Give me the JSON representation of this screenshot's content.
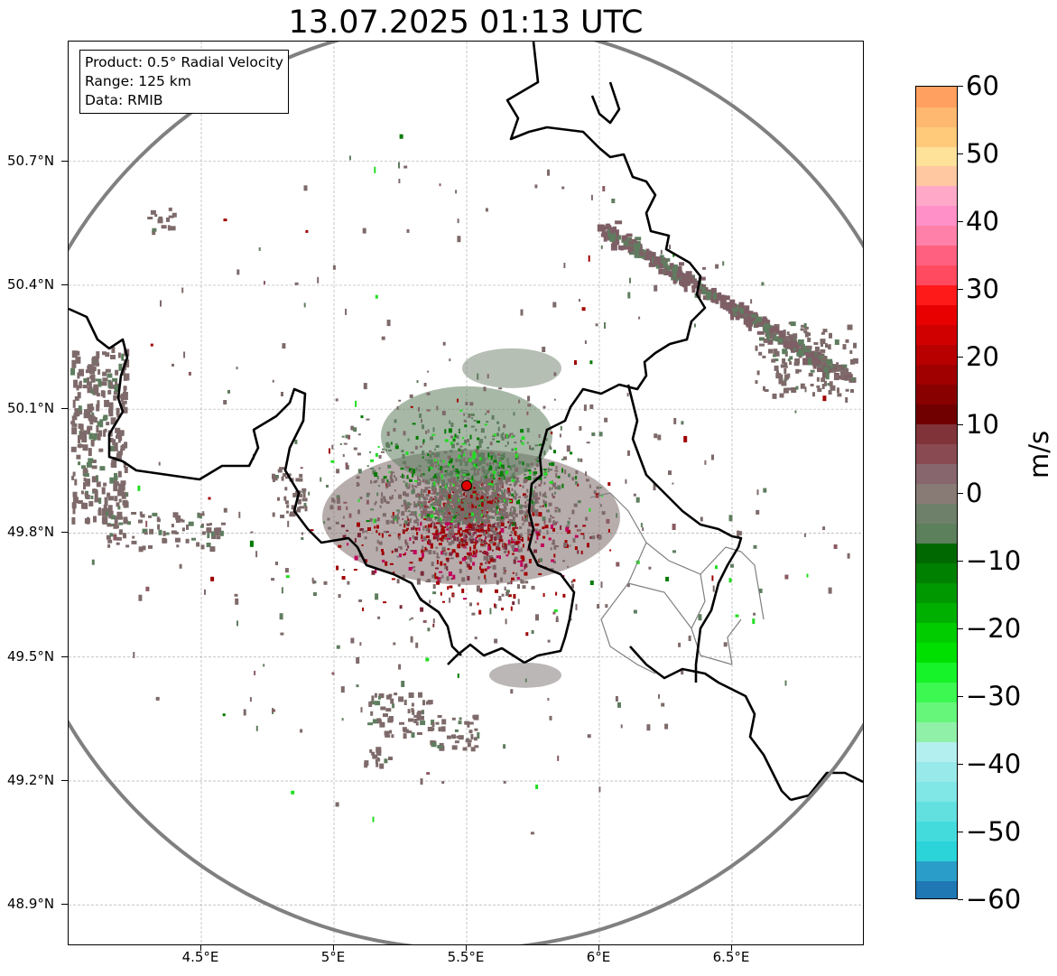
{
  "title": "13.07.2025 01:13 UTC",
  "info": {
    "product": "Product: 0.5° Radial Velocity",
    "range": "Range: 125 km",
    "data": "Data: RMIB"
  },
  "axes": {
    "lat_labels": [
      "50.7°N",
      "50.4°N",
      "50.1°N",
      "49.8°N",
      "49.5°N",
      "49.2°N",
      "48.9°N"
    ],
    "lon_labels": [
      "4.5°E",
      "5°E",
      "5.5°E",
      "6°E",
      "6.5°E"
    ],
    "lat_range": [
      48.8,
      50.99
    ],
    "lon_range": [
      4.0,
      7.0
    ]
  },
  "radar": {
    "site_lon": 5.5,
    "site_lat": 49.915,
    "range_km": 125,
    "marker_color": "#e00000",
    "range_ring_color": "#808080"
  },
  "colorbar": {
    "unit": "m/s",
    "labels": [
      "60",
      "50",
      "40",
      "30",
      "20",
      "10",
      "0",
      "−10",
      "−20",
      "−30",
      "−40",
      "−50",
      "−60"
    ],
    "min": -60,
    "max": 60,
    "colors": [
      "#1f77b4",
      "#2a9ec9",
      "#2ad4d9",
      "#44dbdd",
      "#62e0e0",
      "#80e6e6",
      "#98eaea",
      "#b4efef",
      "#90f0a8",
      "#66f77a",
      "#3cf850",
      "#16f328",
      "#00e000",
      "#00cc00",
      "#00b000",
      "#009800",
      "#008000",
      "#006800",
      "#5c7f5c",
      "#6e806a",
      "#887a74",
      "#88666e",
      "#8a4a52",
      "#80343a",
      "#700000",
      "#880000",
      "#a00000",
      "#b80000",
      "#d00000",
      "#e80000",
      "#ff1a1a",
      "#ff4a60",
      "#ff6080",
      "#ff80a8",
      "#ff90c8",
      "#ffa8c8",
      "#ffc8a0",
      "#ffe29a",
      "#ffca7a",
      "#ffb870",
      "#ffa060"
    ]
  },
  "map_colors": {
    "border": "#000000",
    "region_border": "#808080",
    "grid": "#b0b0b0",
    "echo_main": "#7e6a6a",
    "echo_green": "#5f7d5f",
    "echo_red": "#a00000",
    "echo_lime": "#22dd22"
  }
}
